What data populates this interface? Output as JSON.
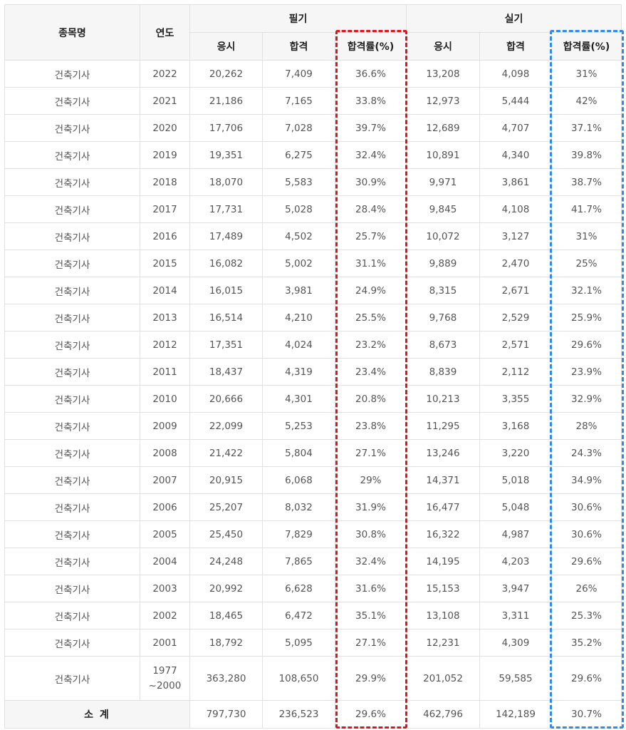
{
  "headers": {
    "item": "종목명",
    "year": "연도",
    "written": "필기",
    "practical": "실기",
    "applicants": "응시",
    "passed": "합격",
    "pass_rate": "합격률(%)"
  },
  "highlight_colors": {
    "written_rate": "#e0141e",
    "practical_rate": "#2f8ae8"
  },
  "rows": [
    {
      "name": "건축기사",
      "year": "2022",
      "w_apply": "20,262",
      "w_pass": "7,409",
      "w_rate": "36.6%",
      "p_apply": "13,208",
      "p_pass": "4,098",
      "p_rate": "31%"
    },
    {
      "name": "건축기사",
      "year": "2021",
      "w_apply": "21,186",
      "w_pass": "7,165",
      "w_rate": "33.8%",
      "p_apply": "12,973",
      "p_pass": "5,444",
      "p_rate": "42%"
    },
    {
      "name": "건축기사",
      "year": "2020",
      "w_apply": "17,706",
      "w_pass": "7,028",
      "w_rate": "39.7%",
      "p_apply": "12,689",
      "p_pass": "4,707",
      "p_rate": "37.1%"
    },
    {
      "name": "건축기사",
      "year": "2019",
      "w_apply": "19,351",
      "w_pass": "6,275",
      "w_rate": "32.4%",
      "p_apply": "10,891",
      "p_pass": "4,340",
      "p_rate": "39.8%"
    },
    {
      "name": "건축기사",
      "year": "2018",
      "w_apply": "18,070",
      "w_pass": "5,583",
      "w_rate": "30.9%",
      "p_apply": "9,971",
      "p_pass": "3,861",
      "p_rate": "38.7%"
    },
    {
      "name": "건축기사",
      "year": "2017",
      "w_apply": "17,731",
      "w_pass": "5,028",
      "w_rate": "28.4%",
      "p_apply": "9,845",
      "p_pass": "4,108",
      "p_rate": "41.7%"
    },
    {
      "name": "건축기사",
      "year": "2016",
      "w_apply": "17,489",
      "w_pass": "4,502",
      "w_rate": "25.7%",
      "p_apply": "10,072",
      "p_pass": "3,127",
      "p_rate": "31%"
    },
    {
      "name": "건축기사",
      "year": "2015",
      "w_apply": "16,082",
      "w_pass": "5,002",
      "w_rate": "31.1%",
      "p_apply": "9,889",
      "p_pass": "2,470",
      "p_rate": "25%"
    },
    {
      "name": "건축기사",
      "year": "2014",
      "w_apply": "16,015",
      "w_pass": "3,981",
      "w_rate": "24.9%",
      "p_apply": "8,315",
      "p_pass": "2,671",
      "p_rate": "32.1%"
    },
    {
      "name": "건축기사",
      "year": "2013",
      "w_apply": "16,514",
      "w_pass": "4,210",
      "w_rate": "25.5%",
      "p_apply": "9,768",
      "p_pass": "2,529",
      "p_rate": "25.9%"
    },
    {
      "name": "건축기사",
      "year": "2012",
      "w_apply": "17,351",
      "w_pass": "4,024",
      "w_rate": "23.2%",
      "p_apply": "8,673",
      "p_pass": "2,571",
      "p_rate": "29.6%"
    },
    {
      "name": "건축기사",
      "year": "2011",
      "w_apply": "18,437",
      "w_pass": "4,319",
      "w_rate": "23.4%",
      "p_apply": "8,839",
      "p_pass": "2,112",
      "p_rate": "23.9%"
    },
    {
      "name": "건축기사",
      "year": "2010",
      "w_apply": "20,666",
      "w_pass": "4,301",
      "w_rate": "20.8%",
      "p_apply": "10,213",
      "p_pass": "3,355",
      "p_rate": "32.9%"
    },
    {
      "name": "건축기사",
      "year": "2009",
      "w_apply": "22,099",
      "w_pass": "5,253",
      "w_rate": "23.8%",
      "p_apply": "11,295",
      "p_pass": "3,168",
      "p_rate": "28%"
    },
    {
      "name": "건축기사",
      "year": "2008",
      "w_apply": "21,422",
      "w_pass": "5,804",
      "w_rate": "27.1%",
      "p_apply": "13,246",
      "p_pass": "3,220",
      "p_rate": "24.3%"
    },
    {
      "name": "건축기사",
      "year": "2007",
      "w_apply": "20,915",
      "w_pass": "6,068",
      "w_rate": "29%",
      "p_apply": "14,371",
      "p_pass": "5,018",
      "p_rate": "34.9%"
    },
    {
      "name": "건축기사",
      "year": "2006",
      "w_apply": "25,207",
      "w_pass": "8,032",
      "w_rate": "31.9%",
      "p_apply": "16,477",
      "p_pass": "5,048",
      "p_rate": "30.6%"
    },
    {
      "name": "건축기사",
      "year": "2005",
      "w_apply": "25,450",
      "w_pass": "7,829",
      "w_rate": "30.8%",
      "p_apply": "16,322",
      "p_pass": "4,987",
      "p_rate": "30.6%"
    },
    {
      "name": "건축기사",
      "year": "2004",
      "w_apply": "24,248",
      "w_pass": "7,865",
      "w_rate": "32.4%",
      "p_apply": "14,195",
      "p_pass": "4,203",
      "p_rate": "29.6%"
    },
    {
      "name": "건축기사",
      "year": "2003",
      "w_apply": "20,992",
      "w_pass": "6,628",
      "w_rate": "31.6%",
      "p_apply": "15,153",
      "p_pass": "3,947",
      "p_rate": "26%"
    },
    {
      "name": "건축기사",
      "year": "2002",
      "w_apply": "18,465",
      "w_pass": "6,472",
      "w_rate": "35.1%",
      "p_apply": "13,108",
      "p_pass": "3,311",
      "p_rate": "25.3%"
    },
    {
      "name": "건축기사",
      "year": "2001",
      "w_apply": "18,792",
      "w_pass": "5,095",
      "w_rate": "27.1%",
      "p_apply": "12,231",
      "p_pass": "4,309",
      "p_rate": "35.2%"
    }
  ],
  "range_row": {
    "name": "건축기사",
    "year_top": "1977",
    "year_bottom": "~2000",
    "w_apply": "363,280",
    "w_pass": "108,650",
    "w_rate": "29.9%",
    "p_apply": "201,052",
    "p_pass": "59,585",
    "p_rate": "29.6%"
  },
  "total": {
    "label": "소 계",
    "w_apply": "797,730",
    "w_pass": "236,523",
    "w_rate": "29.6%",
    "p_apply": "462,796",
    "p_pass": "142,189",
    "p_rate": "30.7%"
  }
}
